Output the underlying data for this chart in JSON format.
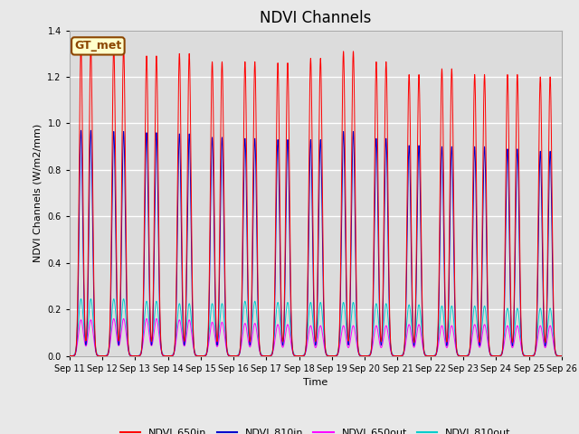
{
  "title": "NDVI Channels",
  "ylabel": "NDVI Channels (W/m2/mm)",
  "xlabel": "Time",
  "annotation": "GT_met",
  "annotation_color": "#8B4500",
  "annotation_bg": "#ffffcc",
  "annotation_edge": "#8B4500",
  "ylim": [
    0.0,
    1.4
  ],
  "num_cycles": 15,
  "xtick_labels": [
    "Sep 11",
    "Sep 12",
    "Sep 13",
    "Sep 14",
    "Sep 15",
    "Sep 16",
    "Sep 17",
    "Sep 18",
    "Sep 19",
    "Sep 20",
    "Sep 21",
    "Sep 22",
    "Sep 23",
    "Sep 24",
    "Sep 25",
    "Sep 26"
  ],
  "series": {
    "NDVI_650in": {
      "color": "#ff0000",
      "peaks": [
        1.33,
        1.33,
        1.29,
        1.3,
        1.265,
        1.265,
        1.26,
        1.28,
        1.31,
        1.265,
        1.21,
        1.235,
        1.21,
        1.21,
        1.2
      ]
    },
    "NDVI_810in": {
      "color": "#0000cc",
      "peaks": [
        0.97,
        0.965,
        0.96,
        0.955,
        0.94,
        0.935,
        0.93,
        0.93,
        0.965,
        0.935,
        0.905,
        0.9,
        0.9,
        0.89,
        0.88
      ]
    },
    "NDVI_650out": {
      "color": "#ff00ff",
      "peaks": [
        0.155,
        0.16,
        0.16,
        0.155,
        0.145,
        0.14,
        0.135,
        0.13,
        0.13,
        0.13,
        0.135,
        0.13,
        0.135,
        0.13,
        0.13
      ]
    },
    "NDVI_810out": {
      "color": "#00cccc",
      "peaks": [
        0.245,
        0.245,
        0.235,
        0.225,
        0.225,
        0.235,
        0.23,
        0.23,
        0.23,
        0.225,
        0.22,
        0.215,
        0.215,
        0.205,
        0.205
      ]
    }
  },
  "peak_offsets": [
    0.35,
    0.65
  ],
  "sigma_in": 0.055,
  "sigma_out": 0.075,
  "background_color": "#e8e8e8",
  "plot_bg": "#dcdcdc",
  "grid_color": "#ffffff",
  "title_fontsize": 12,
  "tick_fontsize": 7,
  "label_fontsize": 8,
  "legend_fontsize": 8
}
